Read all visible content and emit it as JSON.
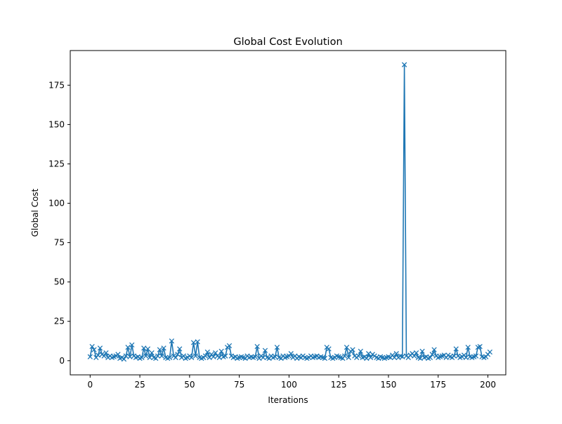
{
  "chart_data": {
    "type": "line",
    "title": "Global Cost Evolution",
    "xlabel": "Iterations",
    "ylabel": "Global Cost",
    "xlim": [
      -10,
      209
    ],
    "ylim": [
      -9,
      197
    ],
    "x_ticks": [
      0,
      25,
      50,
      75,
      100,
      125,
      150,
      175,
      200
    ],
    "y_ticks": [
      0,
      25,
      50,
      75,
      100,
      125,
      150,
      175
    ],
    "grid": false,
    "marker": "x",
    "color": "#1f77b4",
    "series": [
      {
        "values": [
          2.5,
          9.0,
          7.0,
          2.0,
          3.5,
          8.0,
          4.0,
          3.0,
          5.0,
          2.0,
          3.0,
          2.0,
          2.5,
          3.0,
          4.0,
          1.5,
          2.0,
          1.0,
          3.0,
          8.5,
          2.5,
          10.0,
          3.0,
          2.0,
          2.5,
          1.5,
          2.0,
          8.0,
          3.0,
          7.5,
          2.0,
          5.0,
          2.0,
          1.5,
          3.0,
          7.0,
          3.0,
          8.0,
          2.0,
          1.5,
          2.0,
          12.5,
          3.0,
          2.0,
          4.0,
          7.5,
          2.0,
          3.0,
          1.5,
          2.0,
          3.0,
          2.0,
          11.5,
          3.0,
          12.0,
          2.0,
          1.5,
          2.0,
          3.0,
          5.5,
          2.0,
          4.0,
          2.5,
          5.0,
          3.0,
          2.0,
          6.0,
          2.5,
          3.0,
          8.5,
          9.5,
          3.0,
          2.0,
          2.5,
          1.5,
          2.0,
          2.5,
          2.0,
          1.5,
          3.0,
          2.0,
          2.5,
          2.0,
          2.5,
          9.0,
          1.5,
          3.0,
          2.0,
          6.5,
          2.0,
          1.5,
          3.0,
          2.0,
          2.5,
          8.5,
          2.0,
          1.5,
          3.0,
          2.0,
          2.5,
          3.0,
          4.5,
          2.0,
          3.0,
          1.5,
          2.5,
          2.0,
          3.0,
          2.0,
          1.5,
          2.0,
          3.0,
          2.0,
          2.5,
          3.0,
          2.0,
          2.5,
          2.0,
          1.5,
          8.5,
          7.5,
          2.0,
          1.5,
          2.0,
          3.0,
          2.5,
          2.0,
          1.5,
          3.0,
          8.5,
          2.0,
          6.0,
          7.0,
          3.0,
          2.0,
          3.0,
          6.0,
          2.0,
          2.5,
          1.5,
          4.5,
          2.0,
          4.0,
          3.0,
          2.0,
          1.5,
          2.5,
          2.0,
          1.5,
          2.0,
          2.5,
          2.0,
          3.5,
          2.0,
          4.5,
          2.0,
          3.0,
          2.5,
          188.0,
          3.0,
          2.0,
          3.5,
          4.5,
          3.0,
          5.0,
          2.0,
          1.5,
          6.0,
          2.0,
          2.5,
          1.5,
          2.0,
          4.0,
          7.0,
          3.0,
          2.0,
          2.5,
          3.0,
          3.5,
          2.0,
          3.5,
          2.5,
          2.0,
          3.0,
          7.5,
          3.0,
          2.0,
          2.5,
          3.5,
          2.0,
          8.5,
          2.5,
          2.0,
          2.5,
          3.0,
          8.5,
          9.0,
          2.5,
          2.0,
          2.5,
          4.0,
          5.5
        ]
      }
    ]
  }
}
